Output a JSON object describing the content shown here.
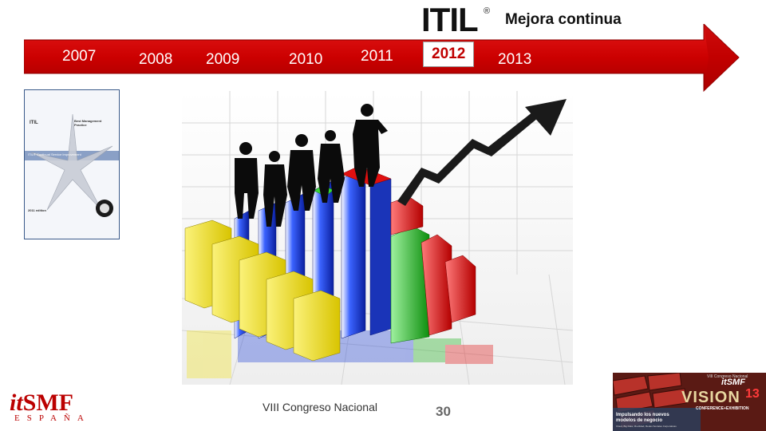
{
  "header": {
    "logo_text": "ITIL",
    "logo_mark": "®",
    "title": "Mejora continua"
  },
  "timeline": {
    "years": [
      "2007",
      "2008",
      "2009",
      "2010",
      "2011",
      "2012",
      "2013"
    ],
    "active_year": "2012",
    "colors": {
      "arrow": "#d40000",
      "arrow_dark": "#9a0000",
      "text": "#ffffff"
    }
  },
  "book": {
    "brand": "ITIL",
    "badge": "Best Management Practice",
    "title": "ITIL® Continual Service Improvement",
    "edition": "2011 edition"
  },
  "illustration": {
    "icon": "growth-chart-with-people-icon",
    "colors": {
      "yellow": "#f2e21a",
      "blue": "#1d3fd8",
      "green": "#18b018",
      "red": "#e01010",
      "arrow": "#1a1a1a"
    }
  },
  "footer": {
    "logo_it": "it",
    "logo_smf": "SMF",
    "logo_country": "ESPAÑA",
    "event": "VIII Congreso Nacional",
    "page_number": "30"
  },
  "banner": {
    "top_line": "VIII Congreso Nacional",
    "brand": "itSMF",
    "title": "VISION",
    "year": "13",
    "subtitle": "CONFERENCE+EXHIBITION",
    "tagline": "Impulsando los nuevos modelos de negocio",
    "topics": "Cloud, Big Data, Movilidad, Redes Sociales Corporativas"
  }
}
